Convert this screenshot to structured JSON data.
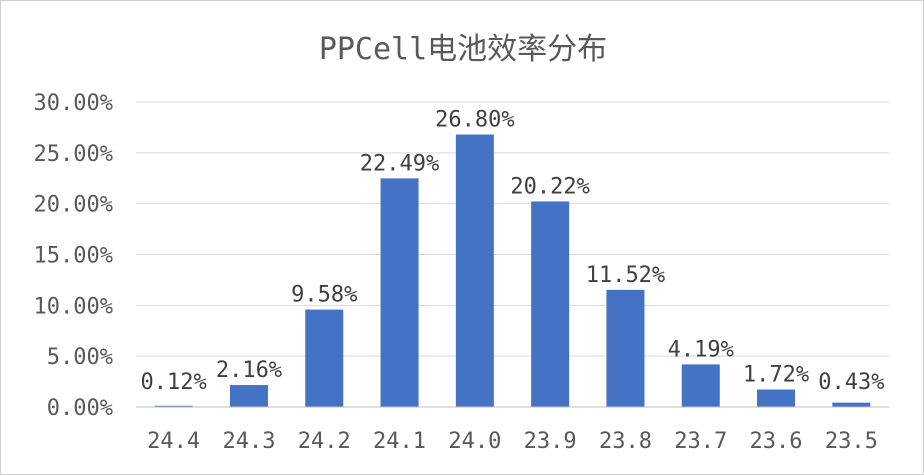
{
  "chart_data": {
    "type": "bar",
    "title": "PPCell电池效率分布",
    "xlabel": "",
    "ylabel": "",
    "categories": [
      "24.4",
      "24.3",
      "24.2",
      "24.1",
      "24.0",
      "23.9",
      "23.8",
      "23.7",
      "23.6",
      "23.5"
    ],
    "values": [
      0.12,
      2.16,
      9.58,
      22.49,
      26.8,
      20.22,
      11.52,
      4.19,
      1.72,
      0.43
    ],
    "data_labels": [
      "0.12%",
      "2.16%",
      "9.58%",
      "22.49%",
      "26.80%",
      "20.22%",
      "11.52%",
      "4.19%",
      "1.72%",
      "0.43%"
    ],
    "yticks": [
      0,
      5,
      10,
      15,
      20,
      25,
      30
    ],
    "ytick_labels": [
      "0.00%",
      "5.00%",
      "10.00%",
      "15.00%",
      "20.00%",
      "25.00%",
      "30.00%"
    ],
    "ylim": [
      0,
      30
    ],
    "grid": true,
    "legend": "none",
    "bar_color": "#4472c4"
  }
}
